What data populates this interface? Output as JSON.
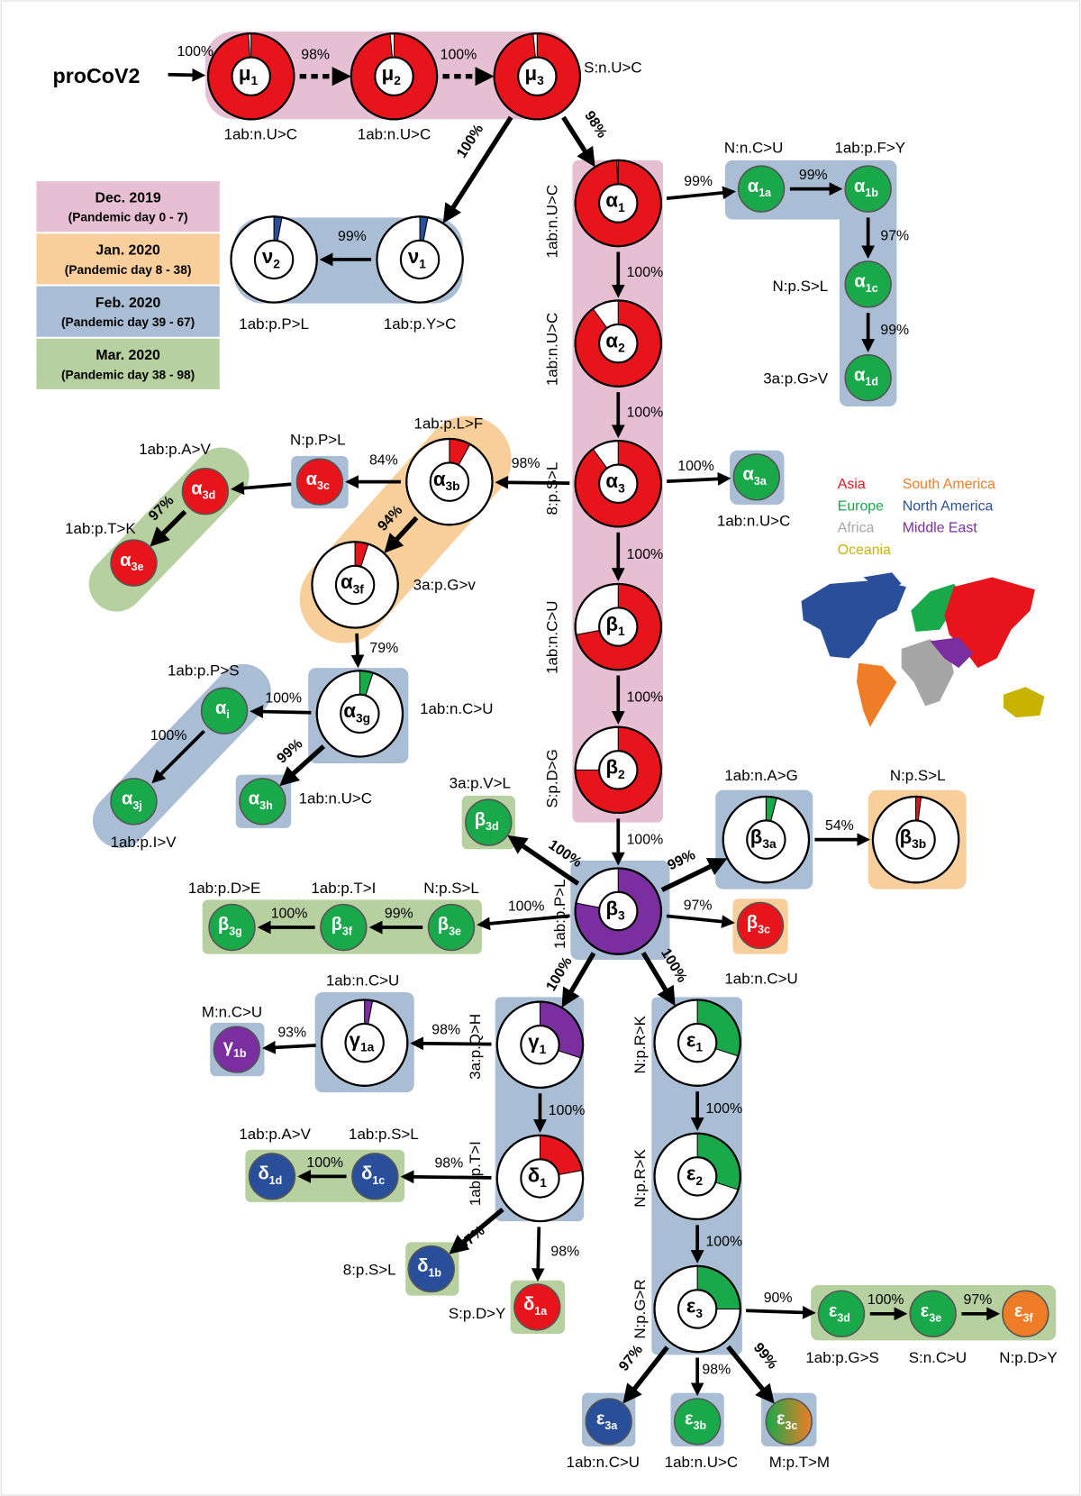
{
  "root": {
    "label": "proCoV2"
  },
  "colors": {
    "dec2019": "#e6bfd3",
    "jan2020": "#f8cf9a",
    "feb2020": "#a9bdd4",
    "mar2020": "#b6d09f",
    "red": "#e8141b",
    "green": "#19a84a",
    "blue": "#2a4f9a",
    "purple": "#7a2ea0",
    "orange": "#ef7d27",
    "asia": "#e8141b",
    "europe": "#19a84a",
    "africa": "#a6a6a6",
    "oceania": "#c8b400",
    "south_america": "#ef7d27",
    "north_america": "#2a4f9a",
    "middle_east": "#7a2ea0"
  },
  "legend": [
    {
      "period": "Dec. 2019",
      "range": "(Pandemic day 0 - 7)",
      "color_key": "dec2019"
    },
    {
      "period": "Jan. 2020",
      "range": "(Pandemic day 8 - 38)",
      "color_key": "jan2020"
    },
    {
      "period": "Feb. 2020",
      "range": "(Pandemic day 39 - 67)",
      "color_key": "feb2020"
    },
    {
      "period": "Mar. 2020",
      "range": "(Pandemic day 38 - 98)",
      "color_key": "mar2020"
    }
  ],
  "continents": [
    {
      "name": "Asia",
      "color_key": "asia"
    },
    {
      "name": "South America",
      "color_key": "south_america"
    },
    {
      "name": "Europe",
      "color_key": "europe"
    },
    {
      "name": "North America",
      "color_key": "north_america"
    },
    {
      "name": "Africa",
      "color_key": "africa"
    },
    {
      "name": "Middle East",
      "color_key": "middle_east"
    },
    {
      "name": "Oceania",
      "color_key": "oceania"
    }
  ],
  "pie_nodes": [
    {
      "id": "mu1",
      "sym": "μ",
      "sub": "1",
      "slice_color": "red",
      "fraction": 0.99
    },
    {
      "id": "mu2",
      "sym": "μ",
      "sub": "2",
      "slice_color": "red",
      "fraction": 0.985
    },
    {
      "id": "mu3",
      "sym": "μ",
      "sub": "3",
      "slice_color": "red",
      "fraction": 0.985
    },
    {
      "id": "nu1",
      "sym": "ν",
      "sub": "1",
      "slice_color": "blue",
      "fraction": 0.03
    },
    {
      "id": "nu2",
      "sym": "ν",
      "sub": "2",
      "slice_color": "blue",
      "fraction": 0.03
    },
    {
      "id": "alpha1",
      "sym": "α",
      "sub": "1",
      "slice_color": "red",
      "fraction": 0.995
    },
    {
      "id": "alpha2",
      "sym": "α",
      "sub": "2",
      "slice_color": "red",
      "fraction": 0.9
    },
    {
      "id": "alpha3",
      "sym": "α",
      "sub": "3",
      "slice_color": "red",
      "fraction": 0.9
    },
    {
      "id": "beta1",
      "sym": "β",
      "sub": "1",
      "slice_color": "red",
      "fraction": 0.72
    },
    {
      "id": "beta2",
      "sym": "β",
      "sub": "2",
      "slice_color": "red",
      "fraction": 0.75
    },
    {
      "id": "beta3",
      "sym": "β",
      "sub": "3",
      "slice_color": "purple",
      "fraction": 0.78
    },
    {
      "id": "alpha3b",
      "sym": "α",
      "sub": "3b",
      "slice_color": "red",
      "fraction": 0.08
    },
    {
      "id": "alpha3f",
      "sym": "α",
      "sub": "3f",
      "slice_color": "red",
      "fraction": 0.05
    },
    {
      "id": "alpha3g",
      "sym": "α",
      "sub": "3g",
      "slice_color": "green",
      "fraction": 0.05
    },
    {
      "id": "beta3a",
      "sym": "β",
      "sub": "3a",
      "slice_color": "green",
      "fraction": 0.04
    },
    {
      "id": "beta3b",
      "sym": "β",
      "sub": "3b",
      "slice_color": "red",
      "fraction": 0.02
    },
    {
      "id": "gamma1",
      "sym": "γ",
      "sub": "1",
      "slice_color": "purple",
      "fraction": 0.3
    },
    {
      "id": "gamma1a",
      "sym": "γ",
      "sub": "1a",
      "slice_color": "purple",
      "fraction": 0.03
    },
    {
      "id": "delta1",
      "sym": "δ",
      "sub": "1",
      "slice_color": "red",
      "fraction": 0.22
    },
    {
      "id": "eps1",
      "sym": "ε",
      "sub": "1",
      "slice_color": "green",
      "fraction": 0.3
    },
    {
      "id": "eps2",
      "sym": "ε",
      "sub": "2",
      "slice_color": "green",
      "fraction": 0.3
    },
    {
      "id": "eps3",
      "sym": "ε",
      "sub": "3",
      "slice_color": "green",
      "fraction": 0.25
    }
  ],
  "leaf_nodes": [
    {
      "id": "a1a",
      "sym": "α",
      "sub": "1a",
      "color": "green"
    },
    {
      "id": "a1b",
      "sym": "α",
      "sub": "1b",
      "color": "green"
    },
    {
      "id": "a1c",
      "sym": "α",
      "sub": "1c",
      "color": "green"
    },
    {
      "id": "a1d",
      "sym": "α",
      "sub": "1d",
      "color": "green"
    },
    {
      "id": "a3a",
      "sym": "α",
      "sub": "3a",
      "color": "green"
    },
    {
      "id": "a3c",
      "sym": "α",
      "sub": "3c",
      "color": "red"
    },
    {
      "id": "a3d",
      "sym": "α",
      "sub": "3d",
      "color": "red"
    },
    {
      "id": "a3e",
      "sym": "α",
      "sub": "3e",
      "color": "red"
    },
    {
      "id": "ai",
      "sym": "α",
      "sub": "i",
      "color": "green"
    },
    {
      "id": "a3j",
      "sym": "α",
      "sub": "3j",
      "color": "green"
    },
    {
      "id": "a3h",
      "sym": "α",
      "sub": "3h",
      "color": "green"
    },
    {
      "id": "b3d",
      "sym": "β",
      "sub": "3d",
      "color": "green"
    },
    {
      "id": "b3c",
      "sym": "β",
      "sub": "3c",
      "color": "red"
    },
    {
      "id": "b3e",
      "sym": "β",
      "sub": "3e",
      "color": "green"
    },
    {
      "id": "b3f",
      "sym": "β",
      "sub": "3f",
      "color": "green"
    },
    {
      "id": "b3g",
      "sym": "β",
      "sub": "3g",
      "color": "green"
    },
    {
      "id": "g1b",
      "sym": "γ",
      "sub": "1b",
      "color": "purple"
    },
    {
      "id": "d1c",
      "sym": "δ",
      "sub": "1c",
      "color": "blue"
    },
    {
      "id": "d1d",
      "sym": "δ",
      "sub": "1d",
      "color": "blue"
    },
    {
      "id": "d1b",
      "sym": "δ",
      "sub": "1b",
      "color": "blue"
    },
    {
      "id": "d1a",
      "sym": "δ",
      "sub": "1a",
      "color": "red"
    },
    {
      "id": "e3d",
      "sym": "ε",
      "sub": "3d",
      "color": "green"
    },
    {
      "id": "e3e",
      "sym": "ε",
      "sub": "3e",
      "color": "green"
    },
    {
      "id": "e3f",
      "sym": "ε",
      "sub": "3f",
      "color": "orange"
    },
    {
      "id": "e3a",
      "sym": "ε",
      "sub": "3a",
      "color": "blue"
    },
    {
      "id": "e3b",
      "sym": "ε",
      "sub": "3b",
      "color": "green"
    },
    {
      "id": "e3c",
      "sym": "ε",
      "sub": "3c",
      "color": "green-orange"
    }
  ],
  "edges": [
    {
      "from": "proCoV2",
      "to": "mu1",
      "pct": "100%"
    },
    {
      "from": "mu1",
      "to": "mu2",
      "pct": "98%",
      "style": "dashed"
    },
    {
      "from": "mu2",
      "to": "mu3",
      "pct": "100%",
      "style": "dashed"
    },
    {
      "from": "mu3",
      "to": "alpha1",
      "pct": "98%",
      "bold": true
    },
    {
      "from": "mu3",
      "to": "nu1",
      "pct": "100%",
      "bold": true
    },
    {
      "from": "nu1",
      "to": "nu2",
      "pct": "99%"
    },
    {
      "from": "alpha1",
      "to": "a1a",
      "pct": "99%"
    },
    {
      "from": "a1a",
      "to": "a1b",
      "pct": "99%"
    },
    {
      "from": "a1b",
      "to": "a1c",
      "pct": "97%"
    },
    {
      "from": "a1c",
      "to": "a1d",
      "pct": "99%"
    },
    {
      "from": "alpha1",
      "to": "alpha2",
      "pct": "100%"
    },
    {
      "from": "alpha2",
      "to": "alpha3",
      "pct": "100%"
    },
    {
      "from": "alpha3",
      "to": "a3a",
      "pct": "100%"
    },
    {
      "from": "alpha3",
      "to": "beta1",
      "pct": "100%"
    },
    {
      "from": "beta1",
      "to": "beta2",
      "pct": "100%"
    },
    {
      "from": "beta2",
      "to": "beta3",
      "pct": "100%"
    },
    {
      "from": "alpha3",
      "to": "alpha3b",
      "pct": "98%"
    },
    {
      "from": "alpha3b",
      "to": "a3c",
      "pct": "84%"
    },
    {
      "from": "a3c",
      "to": "a3d",
      "pct": ""
    },
    {
      "from": "a3d",
      "to": "a3e",
      "pct": "97%",
      "bold": true
    },
    {
      "from": "alpha3b",
      "to": "alpha3f",
      "pct": "94%",
      "bold": true
    },
    {
      "from": "alpha3f",
      "to": "alpha3g",
      "pct": "79%"
    },
    {
      "from": "alpha3g",
      "to": "ai",
      "pct": "100%"
    },
    {
      "from": "ai",
      "to": "a3j",
      "pct": "100%"
    },
    {
      "from": "alpha3g",
      "to": "a3h",
      "pct": "99%",
      "bold": true
    },
    {
      "from": "beta3",
      "to": "b3d",
      "pct": "100%",
      "bold": true
    },
    {
      "from": "beta3",
      "to": "beta3a",
      "pct": "99%",
      "bold": true
    },
    {
      "from": "beta3a",
      "to": "beta3b",
      "pct": "54%"
    },
    {
      "from": "beta3",
      "to": "b3c",
      "pct": "97%"
    },
    {
      "from": "beta3",
      "to": "b3e",
      "pct": "100%"
    },
    {
      "from": "b3e",
      "to": "b3f",
      "pct": "99%"
    },
    {
      "from": "b3f",
      "to": "b3g",
      "pct": "100%"
    },
    {
      "from": "beta3",
      "to": "gamma1",
      "pct": "100%",
      "bold": true
    },
    {
      "from": "beta3",
      "to": "eps1",
      "pct": "100%",
      "bold": true
    },
    {
      "from": "gamma1",
      "to": "gamma1a",
      "pct": "98%"
    },
    {
      "from": "gamma1a",
      "to": "g1b",
      "pct": "93%"
    },
    {
      "from": "gamma1",
      "to": "delta1",
      "pct": "100%"
    },
    {
      "from": "delta1",
      "to": "d1c",
      "pct": "98%"
    },
    {
      "from": "d1c",
      "to": "d1d",
      "pct": "100%"
    },
    {
      "from": "delta1",
      "to": "d1b",
      "pct": "97%",
      "bold": true
    },
    {
      "from": "delta1",
      "to": "d1a",
      "pct": "98%"
    },
    {
      "from": "eps1",
      "to": "eps2",
      "pct": "100%"
    },
    {
      "from": "eps2",
      "to": "eps3",
      "pct": "100%"
    },
    {
      "from": "eps3",
      "to": "e3d",
      "pct": "90%"
    },
    {
      "from": "e3d",
      "to": "e3e",
      "pct": "100%"
    },
    {
      "from": "e3e",
      "to": "e3f",
      "pct": "97%"
    },
    {
      "from": "eps3",
      "to": "e3a",
      "pct": "97%",
      "bold": true
    },
    {
      "from": "eps3",
      "to": "e3b",
      "pct": "98%"
    },
    {
      "from": "eps3",
      "to": "e3c",
      "pct": "99%",
      "bold": true
    }
  ],
  "mutations": [
    "S:n.U>C",
    "1ab:n.U>C",
    "1ab:n.U>C",
    "1ab:p.P>L",
    "1ab:p.Y>C",
    "1ab:n.U>C",
    "1ab:n.U>C",
    "8:p.S>L",
    "1ab:n.C>U",
    "S:p.D>G",
    "1ab:p.P>L",
    "N:n.C>U",
    "1ab:p.F>Y",
    "N:p.S>L",
    "3a:p.G>V",
    "1ab:n.U>C",
    "1ab:p.L>F",
    "N:p.P>L",
    "1ab:p.A>V",
    "1ab:p.T>K",
    "3a:p.G>v",
    "1ab:p.P>S",
    "1ab:n.C>U",
    "1ab:n.U>C",
    "1ab:p.I>V",
    "3a:p.V>L",
    "1ab:n.A>G",
    "N:p.S>L",
    "1ab:p.D>E",
    "1ab:p.T>I",
    "N:p.S>L",
    "1ab:n.C>U",
    "1ab:n.C>U",
    "M:n.C>U",
    "3a:p.Q>H",
    "1ab:p.A>V",
    "1ab:p.S>L",
    "1ab:p.T>I",
    "8:p.S>L",
    "S:p.D>Y",
    "N:p.R>K",
    "N:p.R>K",
    "N:p.G>R",
    "1ab:p.G>S",
    "S:n.C>U",
    "N:p.D>Y",
    "1ab:n.C>U",
    "1ab:n.U>C",
    "M:p.T>M"
  ]
}
